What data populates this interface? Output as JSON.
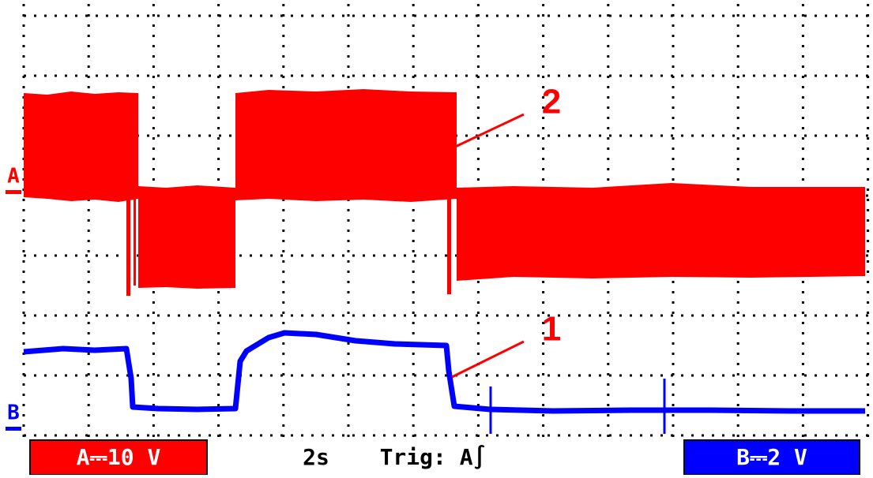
{
  "channels": {
    "a": {
      "marker": "A",
      "scale": "A⎓10 V"
    },
    "b": {
      "marker": "B",
      "scale": "B⎓2 V"
    }
  },
  "timebase": "2s",
  "trigger": "Trig: A∫",
  "annotations": [
    "1",
    "2"
  ]
}
